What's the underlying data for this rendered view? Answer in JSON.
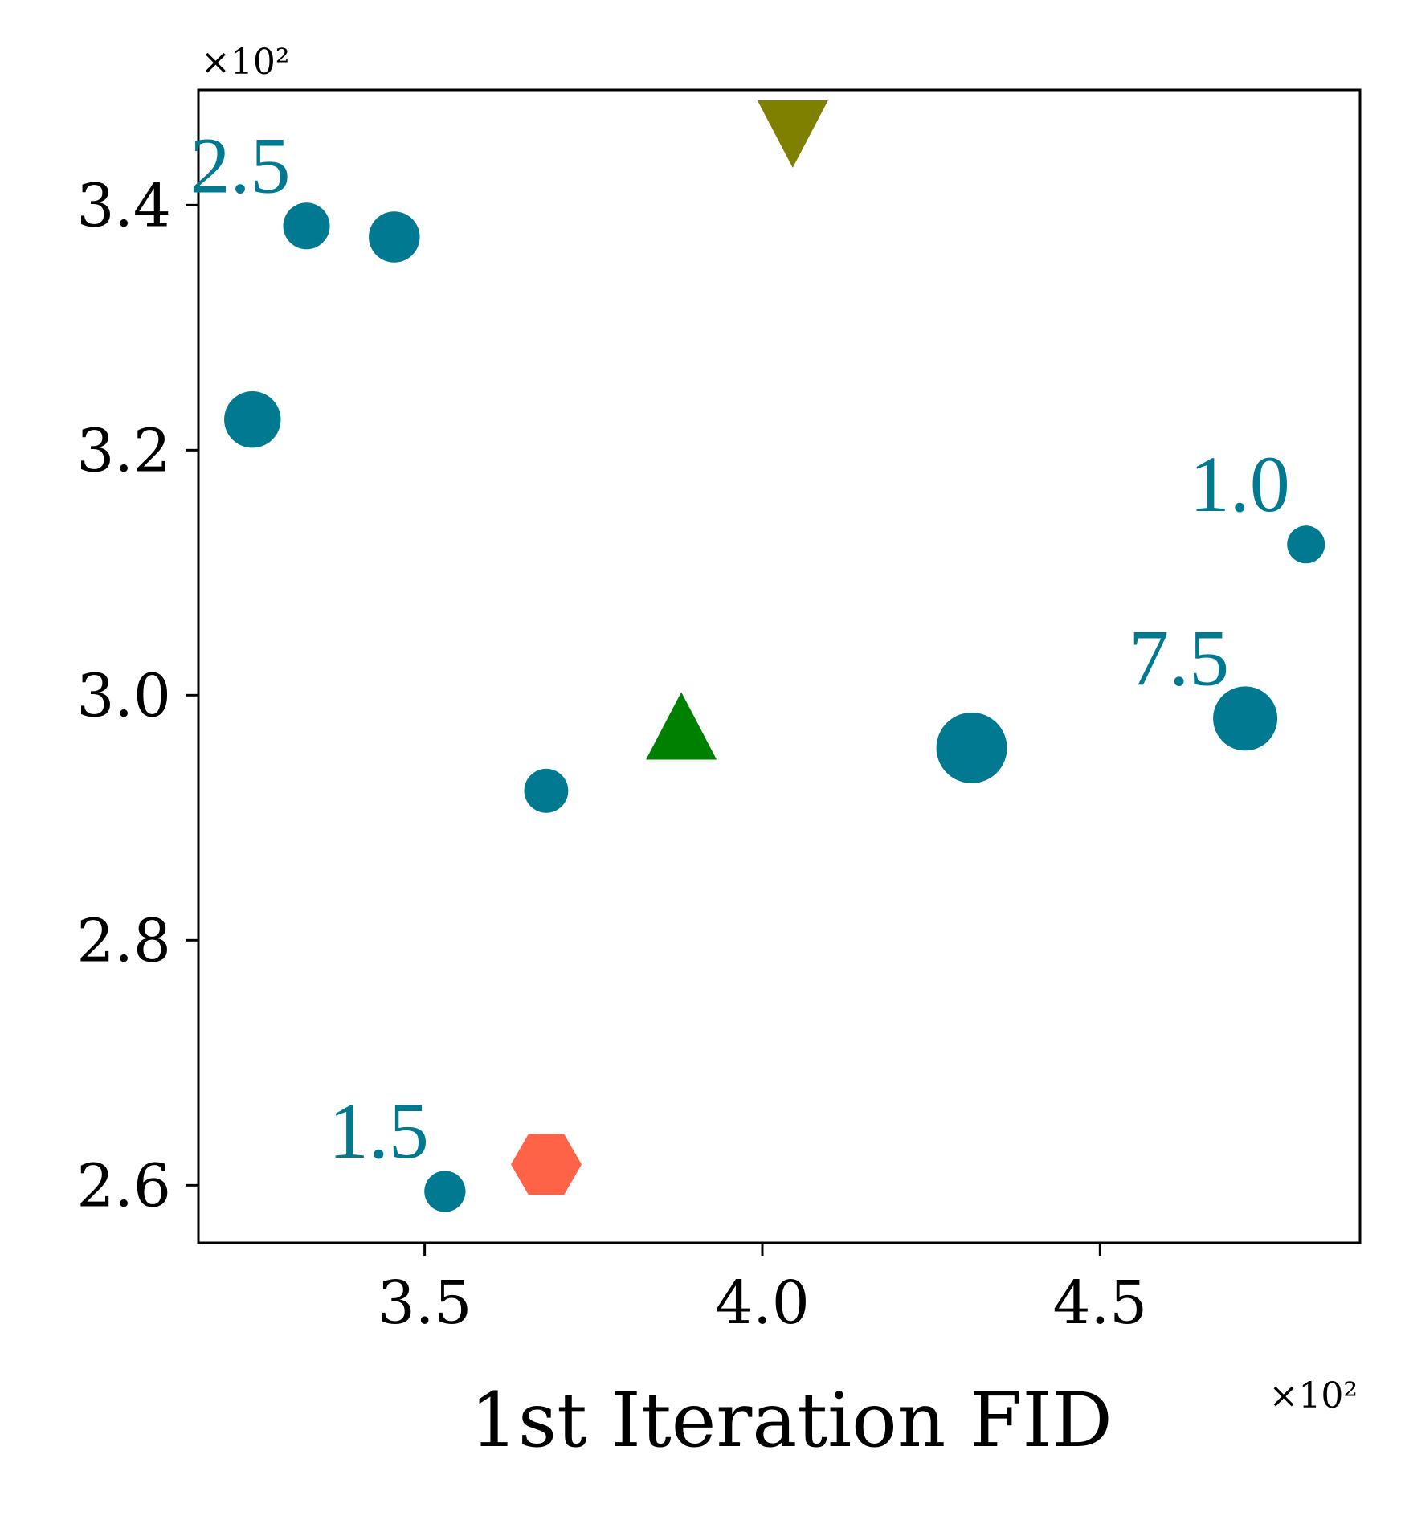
{
  "chart_data": {
    "type": "scatter",
    "xlabel": "1st Iteration FID",
    "ylabel": "",
    "x_multiplier_label": "×10²",
    "y_multiplier_label": "×10²",
    "xlim": [
      3.165,
      4.885
    ],
    "ylim": [
      2.553,
      3.494
    ],
    "xticks": [
      3.5,
      4.0,
      4.5
    ],
    "xtick_labels": [
      "3.5",
      "4.0",
      "4.5"
    ],
    "yticks": [
      2.6,
      2.8,
      3.0,
      3.2,
      3.4
    ],
    "ytick_labels": [
      "2.6",
      "2.8",
      "3.0",
      "3.2",
      "3.4"
    ],
    "grid": false,
    "colors": {
      "circles": "#007991",
      "triangle_down": "#808000",
      "triangle_up": "#008000",
      "hexagon": "#ff6347",
      "axes": "#000000"
    },
    "series": [
      {
        "marker": "circle",
        "color": "#007991",
        "points": [
          {
            "x": 3.325,
            "y": 3.383,
            "size": 2.5
          },
          {
            "x": 3.455,
            "y": 3.374,
            "size": 3.5
          },
          {
            "x": 3.245,
            "y": 3.225,
            "size": 5.0
          },
          {
            "x": 4.805,
            "y": 3.123,
            "size": 1.0
          },
          {
            "x": 4.715,
            "y": 2.981,
            "size": 7.5
          },
          {
            "x": 4.31,
            "y": 2.957,
            "size": 10.0
          },
          {
            "x": 3.68,
            "y": 2.922,
            "size": 2.0
          },
          {
            "x": 3.53,
            "y": 2.595,
            "size": 1.5
          }
        ]
      },
      {
        "marker": "triangle-down",
        "color": "#808000",
        "points": [
          {
            "x": 4.045,
            "y": 3.458
          }
        ]
      },
      {
        "marker": "triangle-up",
        "color": "#008000",
        "points": [
          {
            "x": 3.88,
            "y": 2.975
          }
        ]
      },
      {
        "marker": "hexagon",
        "color": "#ff6347",
        "points": [
          {
            "x": 3.68,
            "y": 2.617
          }
        ]
      }
    ],
    "annotations": [
      {
        "text": "2.5",
        "x": 3.325,
        "y": 3.383,
        "color": "#007991"
      },
      {
        "text": "1.0",
        "x": 4.805,
        "y": 3.123,
        "color": "#007991"
      },
      {
        "text": "7.5",
        "x": 4.715,
        "y": 2.981,
        "color": "#007991"
      },
      {
        "text": "1.5",
        "x": 3.53,
        "y": 2.595,
        "color": "#007991"
      }
    ]
  }
}
